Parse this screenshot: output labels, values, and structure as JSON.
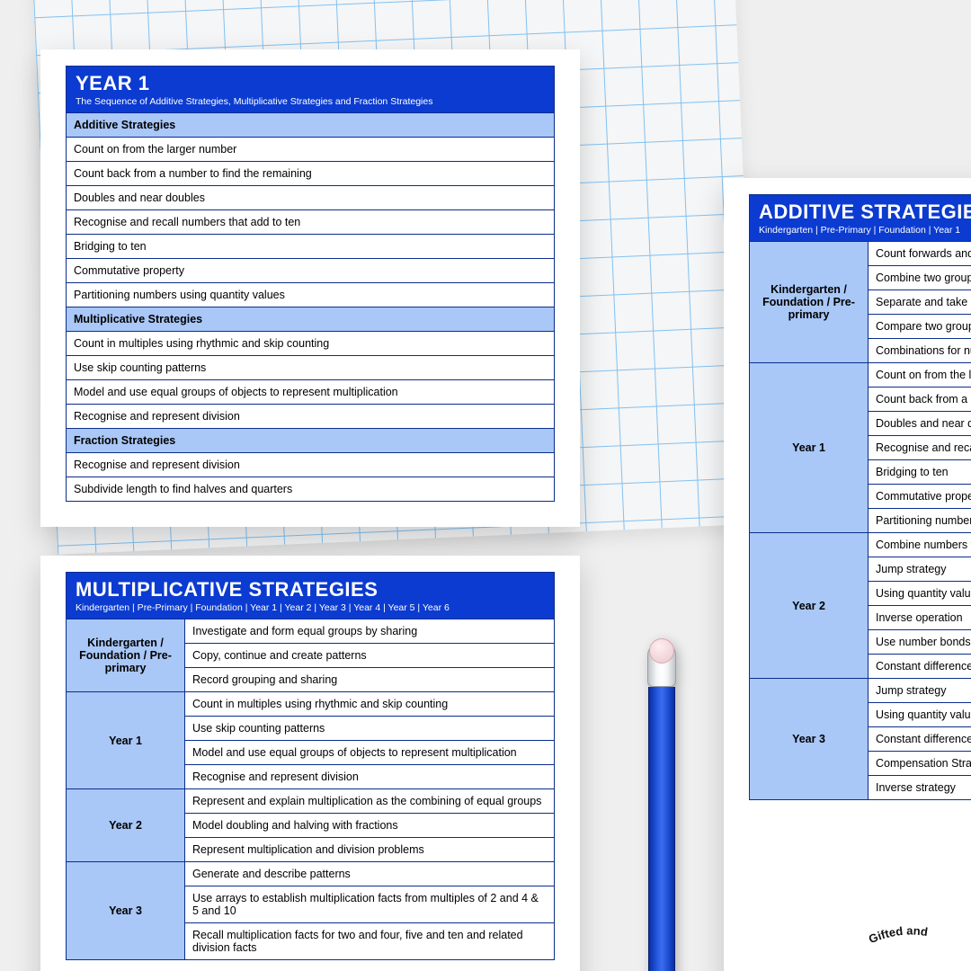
{
  "colors": {
    "header_bg": "#0b3bd0",
    "section_bg": "#a9c7f7",
    "grade_bg": "#a9c7f7",
    "border": "#0b2e8a",
    "page_bg": "#ffffff",
    "canvas_bg": "#efefef",
    "grid_line": "#2a9df4"
  },
  "fonts": {
    "title_size": 22,
    "subtitle_size": 10.5,
    "cell_size": 12.5
  },
  "year1": {
    "title": "YEAR 1",
    "subtitle": "The Sequence of Additive Strategies, Multiplicative Strategies and Fraction Strategies",
    "sections": [
      {
        "header": "Additive Strategies",
        "items": [
          "Count on from the larger number",
          "Count back from a number to find the remaining",
          "Doubles and near doubles",
          "Recognise and recall numbers that add to ten",
          "Bridging to ten",
          "Commutative property",
          "Partitioning numbers using quantity values"
        ]
      },
      {
        "header": "Multiplicative Strategies",
        "items": [
          "Count in multiples using rhythmic and skip counting",
          "Use skip counting patterns",
          "Model and use equal groups of objects to represent multiplication",
          "Recognise and represent division"
        ]
      },
      {
        "header": "Fraction Strategies",
        "items": [
          "Recognise and represent division",
          "Subdivide length to find halves and quarters"
        ]
      }
    ]
  },
  "multiplicative": {
    "title": "MULTIPLICATIVE STRATEGIES",
    "subtitle": "Kindergarten | Pre-Primary | Foundation | Year 1 | Year 2 | Year 3 | Year 4 | Year 5 | Year 6",
    "grades": [
      {
        "label": "Kindergarten / Foundation / Pre-primary",
        "items": [
          "Investigate and form equal groups by sharing",
          "Copy, continue and create patterns",
          "Record grouping and sharing"
        ]
      },
      {
        "label": "Year 1",
        "items": [
          "Count in multiples using rhythmic and skip counting",
          "Use skip counting patterns",
          "Model and use equal groups of objects to represent multiplication",
          "Recognise and represent division"
        ]
      },
      {
        "label": "Year 2",
        "items": [
          "Represent and explain multiplication as the combining of equal groups",
          "Model doubling and halving with fractions",
          "Represent multiplication and division problems"
        ]
      },
      {
        "label": "Year 3",
        "items": [
          "Generate and describe patterns",
          "Use arrays to establish multiplication facts from multiples of 2 and 4 & 5 and 10",
          "Recall multiplication facts for two and four, five and ten and related division facts"
        ]
      }
    ]
  },
  "additive": {
    "title": "ADDITIVE STRATEGIES",
    "subtitle": "Kindergarten | Pre-Primary | Foundation | Year 1",
    "grades": [
      {
        "label": "Kindergarten / Foundation / Pre-primary",
        "items": [
          "Count forwards and back",
          "Combine two groups and",
          "Separate and take away",
          "Compare two groups to a",
          "Combinations for number"
        ]
      },
      {
        "label": "Year 1",
        "items": [
          "Count on from the larger",
          "Count back from a numb",
          "Doubles and near double",
          "Recognise and recall nun",
          "Bridging to ten",
          "Commutative property",
          "Partitioning numbers using"
        ]
      },
      {
        "label": "Year 2",
        "items": [
          "Combine numbers that a",
          "Jump strategy",
          "Using quantity values to s",
          "Inverse operation",
          "Use number bonds to solv",
          "Constant difference"
        ]
      },
      {
        "label": "Year 3",
        "items": [
          "Jump strategy",
          "Using quantity values",
          "Constant difference / lev",
          "Compensation Strategy",
          "Inverse strategy"
        ]
      }
    ]
  },
  "footer_text": "Gifted and"
}
